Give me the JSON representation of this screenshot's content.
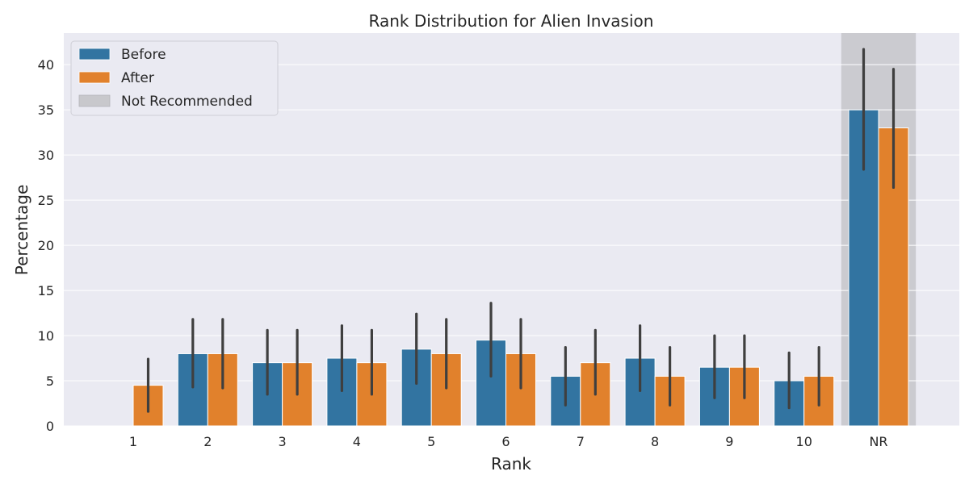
{
  "chart_data": {
    "type": "bar",
    "title": "Rank Distribution for Alien Invasion",
    "xlabel": "Rank",
    "ylabel": "Percentage",
    "categories": [
      "1",
      "2",
      "3",
      "4",
      "5",
      "6",
      "7",
      "8",
      "9",
      "10",
      "NR"
    ],
    "ylim": [
      0,
      43.5
    ],
    "yticks": [
      0,
      5,
      10,
      15,
      20,
      25,
      30,
      35,
      40
    ],
    "grid": true,
    "legend_position": "top-left",
    "series": [
      {
        "name": "Before",
        "color": "#3274a1",
        "values": [
          0,
          8,
          7,
          7.5,
          8.5,
          9.5,
          5.5,
          7.5,
          6.5,
          5,
          35
        ],
        "error_low": [
          0,
          4.3,
          3.5,
          3.9,
          4.7,
          5.5,
          2.3,
          3.9,
          3.1,
          2.0,
          28.4
        ],
        "error_high": [
          0,
          11.8,
          10.6,
          11.1,
          12.4,
          13.6,
          8.7,
          11.1,
          10.0,
          8.1,
          41.7
        ]
      },
      {
        "name": "After",
        "color": "#e1812c",
        "values": [
          4.5,
          8,
          7,
          7,
          8,
          8,
          7,
          5.5,
          6.5,
          5.5,
          33
        ],
        "error_low": [
          1.6,
          4.2,
          3.5,
          3.5,
          4.2,
          4.2,
          3.5,
          2.3,
          3.1,
          2.3,
          26.4
        ],
        "error_high": [
          7.4,
          11.8,
          10.6,
          10.6,
          11.8,
          11.8,
          10.6,
          8.7,
          10.0,
          8.7,
          39.5
        ]
      }
    ],
    "highlight": {
      "category": "NR",
      "label": "Not Recommended",
      "color": "#c8c8cc"
    }
  }
}
